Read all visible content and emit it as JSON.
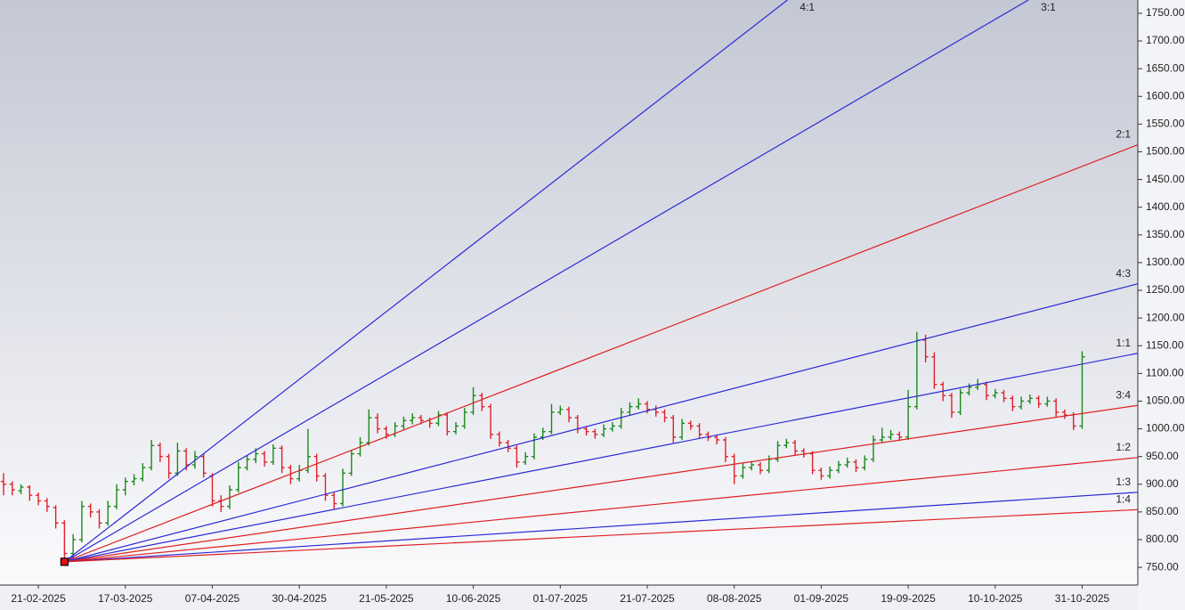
{
  "chart_data": {
    "type": "ohlc",
    "up_color": "#1a8a1a",
    "down_color": "#e0202a",
    "categories": [
      null,
      null,
      null,
      null,
      "21-02-2025",
      null,
      null,
      null,
      null,
      null,
      null,
      null,
      null,
      null,
      "17-03-2025",
      null,
      null,
      null,
      null,
      null,
      null,
      null,
      null,
      null,
      "07-04-2025",
      null,
      null,
      null,
      null,
      null,
      null,
      null,
      null,
      null,
      "30-04-2025",
      null,
      null,
      null,
      null,
      null,
      null,
      null,
      null,
      null,
      "21-05-2025",
      null,
      null,
      null,
      null,
      null,
      null,
      null,
      null,
      null,
      "10-06-2025",
      null,
      null,
      null,
      null,
      null,
      null,
      null,
      null,
      null,
      "01-07-2025",
      null,
      null,
      null,
      null,
      null,
      null,
      null,
      null,
      null,
      "21-07-2025",
      null,
      null,
      null,
      null,
      null,
      null,
      null,
      null,
      null,
      "08-08-2025",
      null,
      null,
      null,
      null,
      null,
      null,
      null,
      null,
      null,
      "01-09-2025",
      null,
      null,
      null,
      null,
      null,
      null,
      null,
      null,
      null,
      "19-09-2025",
      null,
      null,
      null,
      null,
      null,
      null,
      null,
      null,
      null,
      "10-10-2025",
      null,
      null,
      null,
      null,
      null,
      null,
      null,
      null,
      null,
      "31-10-2025"
    ],
    "ohlc": [
      [
        905,
        920,
        880,
        900
      ],
      [
        900,
        905,
        880,
        890
      ],
      [
        888,
        900,
        882,
        895
      ],
      [
        895,
        898,
        870,
        880
      ],
      [
        880,
        885,
        862,
        870
      ],
      [
        870,
        875,
        850,
        860
      ],
      [
        858,
        862,
        820,
        830
      ],
      [
        830,
        835,
        758,
        775
      ],
      [
        775,
        810,
        765,
        800
      ],
      [
        800,
        870,
        795,
        860
      ],
      [
        860,
        865,
        840,
        850
      ],
      [
        850,
        855,
        820,
        830
      ],
      [
        830,
        870,
        825,
        860
      ],
      [
        860,
        900,
        855,
        890
      ],
      [
        890,
        912,
        880,
        905
      ],
      [
        905,
        918,
        898,
        910
      ],
      [
        910,
        938,
        905,
        930
      ],
      [
        930,
        980,
        925,
        970
      ],
      [
        970,
        975,
        940,
        950
      ],
      [
        950,
        955,
        910,
        920
      ],
      [
        920,
        975,
        915,
        960
      ],
      [
        960,
        965,
        925,
        935
      ],
      [
        935,
        960,
        928,
        950
      ],
      [
        950,
        955,
        912,
        920
      ],
      [
        915,
        920,
        860,
        870
      ],
      [
        870,
        880,
        850,
        860
      ],
      [
        860,
        898,
        855,
        890
      ],
      [
        890,
        940,
        885,
        930
      ],
      [
        930,
        952,
        925,
        945
      ],
      [
        945,
        965,
        938,
        955
      ],
      [
        955,
        960,
        932,
        940
      ],
      [
        940,
        972,
        935,
        965
      ],
      [
        965,
        970,
        920,
        930
      ],
      [
        930,
        935,
        900,
        910
      ],
      [
        910,
        935,
        905,
        925
      ],
      [
        925,
        1000,
        920,
        950
      ],
      [
        950,
        955,
        905,
        915
      ],
      [
        915,
        920,
        870,
        880
      ],
      [
        880,
        885,
        855,
        865
      ],
      [
        865,
        928,
        860,
        920
      ],
      [
        920,
        962,
        915,
        955
      ],
      [
        955,
        985,
        950,
        975
      ],
      [
        975,
        1035,
        970,
        1020
      ],
      [
        1020,
        1028,
        992,
        1000
      ],
      [
        1000,
        1005,
        982,
        990
      ],
      [
        990,
        1012,
        985,
        1005
      ],
      [
        1005,
        1022,
        998,
        1015
      ],
      [
        1015,
        1028,
        1008,
        1020
      ],
      [
        1020,
        1025,
        1008,
        1015
      ],
      [
        1015,
        1020,
        1002,
        1010
      ],
      [
        1010,
        1032,
        1005,
        1025
      ],
      [
        1025,
        1030,
        988,
        995
      ],
      [
        995,
        1012,
        990,
        1005
      ],
      [
        1005,
        1038,
        1000,
        1030
      ],
      [
        1030,
        1075,
        1025,
        1060
      ],
      [
        1060,
        1065,
        1032,
        1040
      ],
      [
        1040,
        1045,
        982,
        990
      ],
      [
        990,
        995,
        968,
        975
      ],
      [
        975,
        980,
        958,
        965
      ],
      [
        965,
        970,
        930,
        940
      ],
      [
        940,
        958,
        935,
        950
      ],
      [
        950,
        992,
        945,
        985
      ],
      [
        985,
        1002,
        980,
        995
      ],
      [
        995,
        1045,
        990,
        1030
      ],
      [
        1030,
        1042,
        1025,
        1035
      ],
      [
        1035,
        1040,
        1012,
        1020
      ],
      [
        1020,
        1025,
        992,
        1000
      ],
      [
        1000,
        1005,
        988,
        995
      ],
      [
        995,
        1000,
        982,
        990
      ],
      [
        990,
        1008,
        985,
        1000
      ],
      [
        1000,
        1012,
        995,
        1005
      ],
      [
        1005,
        1038,
        1000,
        1030
      ],
      [
        1030,
        1048,
        1025,
        1040
      ],
      [
        1040,
        1055,
        1035,
        1045
      ],
      [
        1045,
        1050,
        1028,
        1035
      ],
      [
        1035,
        1042,
        1022,
        1030
      ],
      [
        1030,
        1035,
        1012,
        1020
      ],
      [
        1020,
        1025,
        975,
        985
      ],
      [
        985,
        1018,
        980,
        1010
      ],
      [
        1010,
        1015,
        998,
        1005
      ],
      [
        1005,
        1010,
        982,
        990
      ],
      [
        990,
        995,
        978,
        985
      ],
      [
        985,
        990,
        972,
        980
      ],
      [
        980,
        985,
        940,
        950
      ],
      [
        950,
        955,
        900,
        915
      ],
      [
        915,
        938,
        910,
        930
      ],
      [
        930,
        942,
        925,
        935
      ],
      [
        935,
        940,
        918,
        925
      ],
      [
        925,
        952,
        920,
        945
      ],
      [
        945,
        978,
        940,
        970
      ],
      [
        970,
        982,
        965,
        975
      ],
      [
        975,
        980,
        952,
        960
      ],
      [
        960,
        965,
        948,
        955
      ],
      [
        955,
        960,
        918,
        925
      ],
      [
        925,
        930,
        908,
        915
      ],
      [
        915,
        932,
        910,
        925
      ],
      [
        925,
        942,
        920,
        935
      ],
      [
        935,
        948,
        930,
        940
      ],
      [
        940,
        945,
        922,
        930
      ],
      [
        930,
        952,
        925,
        945
      ],
      [
        945,
        988,
        940,
        980
      ],
      [
        980,
        1002,
        975,
        985
      ],
      [
        985,
        998,
        980,
        990
      ],
      [
        990,
        995,
        978,
        985
      ],
      [
        985,
        1070,
        980,
        1040
      ],
      [
        1040,
        1175,
        1035,
        1160
      ],
      [
        1160,
        1170,
        1120,
        1130
      ],
      [
        1130,
        1138,
        1072,
        1080
      ],
      [
        1080,
        1085,
        1050,
        1060
      ],
      [
        1060,
        1065,
        1020,
        1030
      ],
      [
        1030,
        1072,
        1025,
        1065
      ],
      [
        1065,
        1082,
        1060,
        1075
      ],
      [
        1075,
        1090,
        1070,
        1080
      ],
      [
        1080,
        1085,
        1052,
        1060
      ],
      [
        1060,
        1072,
        1055,
        1065
      ],
      [
        1065,
        1070,
        1048,
        1055
      ],
      [
        1055,
        1060,
        1032,
        1040
      ],
      [
        1040,
        1058,
        1035,
        1050
      ],
      [
        1050,
        1062,
        1045,
        1055
      ],
      [
        1055,
        1060,
        1038,
        1045
      ],
      [
        1045,
        1058,
        1040,
        1050
      ],
      [
        1050,
        1055,
        1022,
        1030
      ],
      [
        1030,
        1035,
        1018,
        1025
      ],
      [
        1025,
        1030,
        998,
        1005
      ],
      [
        1005,
        1140,
        1000,
        1130
      ]
    ],
    "ylim": [
      718,
      1774
    ],
    "yticks": [
      {
        "value": 750,
        "label": "750.00"
      },
      {
        "value": 800,
        "label": "800.00"
      },
      {
        "value": 850,
        "label": "850.00"
      },
      {
        "value": 900,
        "label": "900.00"
      },
      {
        "value": 950,
        "label": "950.00"
      },
      {
        "value": 1000,
        "label": "1000.00"
      },
      {
        "value": 1050,
        "label": "1050.00"
      },
      {
        "value": 1100,
        "label": "1100.00"
      },
      {
        "value": 1150,
        "label": "1150.00"
      },
      {
        "value": 1200,
        "label": "1200.00"
      },
      {
        "value": 1250,
        "label": "1250.00"
      },
      {
        "value": 1300,
        "label": "1300.00"
      },
      {
        "value": 1350,
        "label": "1350.00"
      },
      {
        "value": 1400,
        "label": "1400.00"
      },
      {
        "value": 1450,
        "label": "1450.00"
      },
      {
        "value": 1500,
        "label": "1500.00"
      },
      {
        "value": 1550,
        "label": "1550.00"
      },
      {
        "value": 1600,
        "label": "1600.00"
      },
      {
        "value": 1650,
        "label": "1650.00"
      },
      {
        "value": 1700,
        "label": "1700.00"
      },
      {
        "value": 1750,
        "label": "1750.00"
      }
    ],
    "gann": {
      "origin": {
        "bar": 7,
        "price": 760
      },
      "unit": 3.05,
      "lines": [
        {
          "label": "4:1",
          "ratio": 4,
          "color": "#2a2ad6"
        },
        {
          "label": "3:1",
          "ratio": 3,
          "color": "#2a2ad6"
        },
        {
          "label": "2:1",
          "ratio": 2,
          "color": "#e02020"
        },
        {
          "label": "4:3",
          "ratio": 1.3333,
          "color": "#2a2ad6"
        },
        {
          "label": "1:1",
          "ratio": 1,
          "color": "#2a2ad6"
        },
        {
          "label": "3:4",
          "ratio": 0.75,
          "color": "#e02020"
        },
        {
          "label": "1:2",
          "ratio": 0.5,
          "color": "#e02020"
        },
        {
          "label": "1:3",
          "ratio": 0.3333,
          "color": "#2a2ad6"
        },
        {
          "label": "1:4",
          "ratio": 0.25,
          "color": "#e02020"
        }
      ]
    }
  }
}
